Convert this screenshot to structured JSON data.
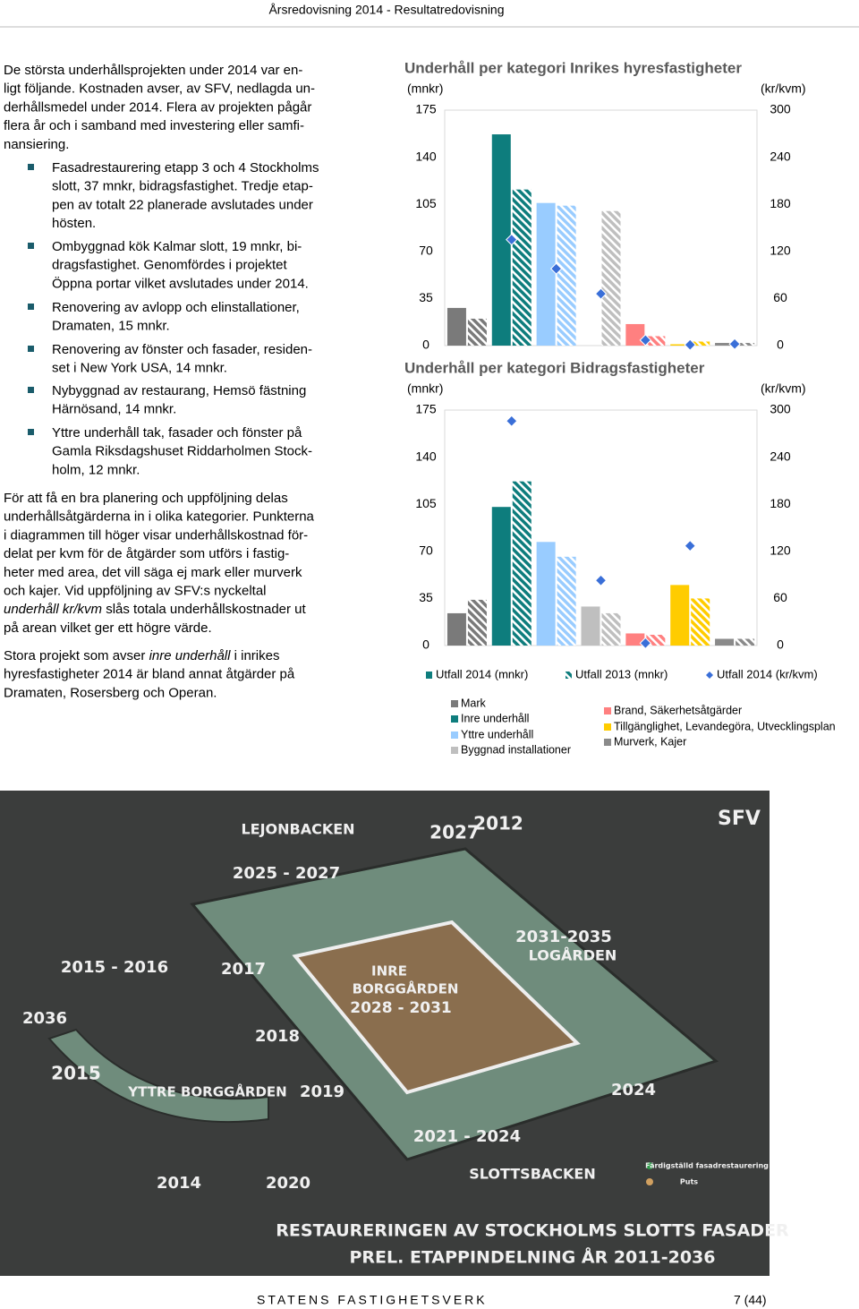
{
  "header": {
    "title": "Årsredovisning 2014 - Resultatredovisning"
  },
  "body": {
    "intro": [
      "De största underhållsprojekten under 2014 var en-",
      "ligt följande. Kostnaden avser, av SFV, nedlagda un-",
      "derhållsmedel under 2014. Flera av projekten pågår",
      "flera år och i samband med investering eller samfi-",
      "nansiering."
    ],
    "bullets": [
      [
        "Fasadrestaurering etapp 3 och 4 Stockholms",
        "slott, 37 mnkr, bidragsfastighet. Tredje etap-",
        "pen av totalt 22 planerade avslutades under",
        "hösten."
      ],
      [
        "Ombyggnad kök Kalmar slott, 19 mnkr, bi-",
        "dragsfastighet. Genomfördes i projektet",
        "Öppna portar vilket avslutades under 2014."
      ],
      [
        "Renovering av avlopp och elinstallationer,",
        "Dramaten, 15 mnkr."
      ],
      [
        "Renovering av fönster och fasader, residen-",
        "set i New York USA, 14 mnkr."
      ],
      [
        "Nybyggnad av restaurang, Hemsö fästning",
        "Härnösand, 14 mnkr."
      ],
      [
        "Yttre underhåll tak, fasader och fönster på",
        "Gamla Riksdagshuset Riddarholmen Stock-",
        "holm, 12 mnkr."
      ]
    ],
    "paragraphs": [
      [
        "För att få en bra planering och uppföljning delas",
        "underhållsåtgärderna in i olika kategorier. Punkterna",
        "i diagrammen till höger visar underhållskostnad för-",
        "delat per kvm för de åtgärder som utförs i fastig-",
        "heter med area, det vill säga ej mark eller murverk",
        "och kajer. Vid uppföljning av SFV:s nyckeltal",
        [
          {
            "text": "underhåll kr/kvm",
            "italic": true
          },
          {
            "text": " slås totala underhållskostnader ut"
          }
        ],
        "på arean vilket ger ett högre värde."
      ],
      [
        [
          {
            "text": "Stora projekt som avser "
          },
          {
            "text": "inre underhåll",
            "italic": true
          },
          {
            "text": " i inrikes"
          }
        ],
        "hyresfastigheter 2014 är bland annat åtgärder på",
        "Dramaten, Rosersberg och Operan."
      ]
    ]
  },
  "chart_data": [
    {
      "type": "bar",
      "title": "Underhåll per kategori Inrikes hyresfastigheter",
      "y_label": "(mnkr)",
      "y2_label": "(kr/kvm)",
      "ylim": [
        0,
        175
      ],
      "yticks": [
        0,
        35,
        70,
        105,
        140,
        175
      ],
      "y2lim": [
        0,
        300
      ],
      "y2ticks": [
        0,
        60,
        120,
        180,
        240,
        300
      ],
      "categories": [
        "Mark",
        "Inre underhåll",
        "Yttre underhåll",
        "Byggnad installationer",
        "Brand, Säkerhetsåtgärder",
        "Tillgänglighet, Levandegöra, Utvecklingsplan",
        "Murverk, Kajer"
      ],
      "category_colors": [
        "#7a7a7a",
        "#0e7d7d",
        "#99ccff",
        "#bfbfbf",
        "#ff8080",
        "#ffcc00",
        "#8a8a8a"
      ],
      "series": [
        {
          "name": "Utfall 2014 (mnkr)",
          "style": "solid",
          "color": "#0e7d7d",
          "values": [
            28,
            157,
            106,
            0,
            16,
            1,
            2
          ]
        },
        {
          "name": "Utfall 2013 (mnkr)",
          "style": "hatched",
          "color": "#0e7d7d",
          "values": [
            20,
            116,
            104,
            100,
            7,
            3,
            2
          ]
        },
        {
          "name": "Utfall 2014 (kr/kvm)",
          "axis": "y2",
          "marker": "diamond",
          "color": "#3a6fd8",
          "values": [
            null,
            135,
            98,
            66,
            7,
            1,
            2
          ]
        }
      ]
    },
    {
      "type": "bar",
      "title": "Underhåll per kategori Bidragsfastigheter",
      "y_label": "(mnkr)",
      "y2_label": "(kr/kvm)",
      "ylim": [
        0,
        175
      ],
      "yticks": [
        0,
        35,
        70,
        105,
        140,
        175
      ],
      "y2lim": [
        0,
        300
      ],
      "y2ticks": [
        0,
        60,
        120,
        180,
        240,
        300
      ],
      "series": [
        {
          "style": "solid",
          "values": [
            24,
            103,
            77,
            29,
            9,
            45,
            5
          ]
        },
        {
          "style": "hatched",
          "values": [
            34,
            122,
            66,
            24,
            8,
            35,
            5
          ]
        },
        {
          "axis": "y2",
          "marker": "diamond",
          "color": "#3a6fd8",
          "values": [
            null,
            286,
            null,
            83,
            3,
            127,
            null
          ]
        }
      ]
    }
  ],
  "image": {
    "labels": [
      "LEJONBACKEN",
      "2027",
      "2012",
      "2025 - 2027",
      "2031-2035",
      "LOGÅRDEN",
      "2015 - 2016",
      "2017",
      "INRE",
      "BORGGÅRDEN",
      "2028 - 2031",
      "2036",
      "2018",
      "2015",
      "YTTRE BORGGÅRDEN",
      "2019",
      "2024",
      "2021 - 2024",
      "SLOTTSBACKEN",
      "2014",
      "2020",
      "SFV",
      "Färdigställd fasadrestaurering",
      "Puts",
      "RESTAURERINGEN AV STOCKHOLMS SLOTTS FASADER",
      "PREL. ETAPPINDELNING ÅR 2011-2036"
    ]
  },
  "footer": {
    "organization": "STATENS FASTIGHETSVERK",
    "page": "7 (44)"
  }
}
